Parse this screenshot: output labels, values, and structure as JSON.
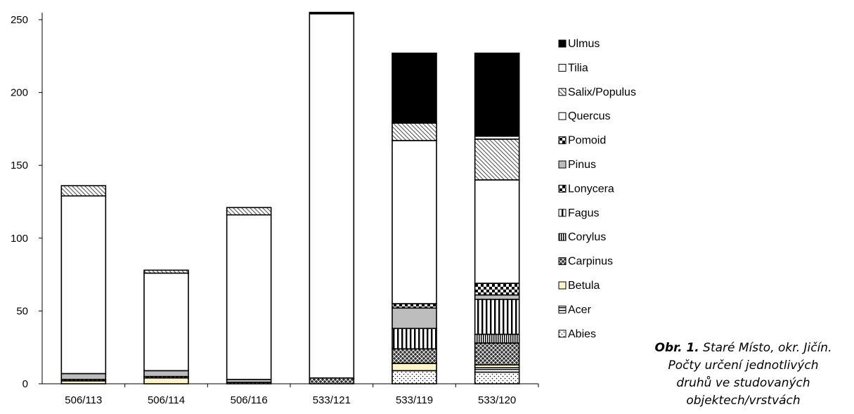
{
  "chart_data": {
    "type": "bar",
    "stacked": true,
    "categories": [
      "506/113",
      "506/114",
      "506/116",
      "533/121",
      "533/119",
      "533/120"
    ],
    "ylim": [
      0,
      250
    ],
    "yticks": [
      0,
      50,
      100,
      150,
      200,
      250
    ],
    "grid": false,
    "legend_position": "right",
    "series": [
      {
        "name": "Abies",
        "pattern": "dots",
        "values": [
          0,
          0,
          0,
          0,
          9,
          8
        ]
      },
      {
        "name": "Acer",
        "pattern": "hbars",
        "values": [
          0,
          0,
          0,
          0,
          0,
          3
        ]
      },
      {
        "name": "Betula",
        "pattern": "cream",
        "values": [
          2,
          4,
          0,
          0,
          5,
          2
        ]
      },
      {
        "name": "Carpinus",
        "pattern": "crosshatch",
        "values": [
          1,
          1,
          1,
          4,
          10,
          15
        ]
      },
      {
        "name": "Corylus",
        "pattern": "vlines-fine",
        "values": [
          0,
          0,
          0,
          0,
          0,
          6
        ]
      },
      {
        "name": "Fagus",
        "pattern": "vlines",
        "values": [
          0,
          0,
          0,
          0,
          14,
          24
        ]
      },
      {
        "name": "Lonycera",
        "pattern": "checker",
        "values": [
          0,
          0,
          0,
          0,
          0,
          0
        ]
      },
      {
        "name": "Pinus",
        "pattern": "gray",
        "values": [
          4,
          4,
          2,
          0,
          14,
          3
        ]
      },
      {
        "name": "Pomoid",
        "pattern": "checker",
        "values": [
          0,
          0,
          0,
          0,
          3,
          8
        ]
      },
      {
        "name": "Quercus",
        "pattern": "white",
        "values": [
          122,
          67,
          113,
          250,
          112,
          71
        ]
      },
      {
        "name": "Salix/Populus",
        "pattern": "diagonal",
        "values": [
          7,
          2,
          5,
          0,
          12,
          28
        ]
      },
      {
        "name": "Tilia",
        "pattern": "white",
        "values": [
          0,
          0,
          0,
          0,
          0,
          2
        ]
      },
      {
        "name": "Ulmus",
        "pattern": "black",
        "values": [
          0,
          0,
          0,
          1,
          48,
          57
        ]
      }
    ]
  },
  "caption": {
    "bold": "Obr. 1.",
    "line1": " Staré Místo, okr. Jičín.",
    "line2": "Počty určení jednotlivých",
    "line3": "druhů ve studovaných",
    "line4": "objektech/vrstvách"
  }
}
